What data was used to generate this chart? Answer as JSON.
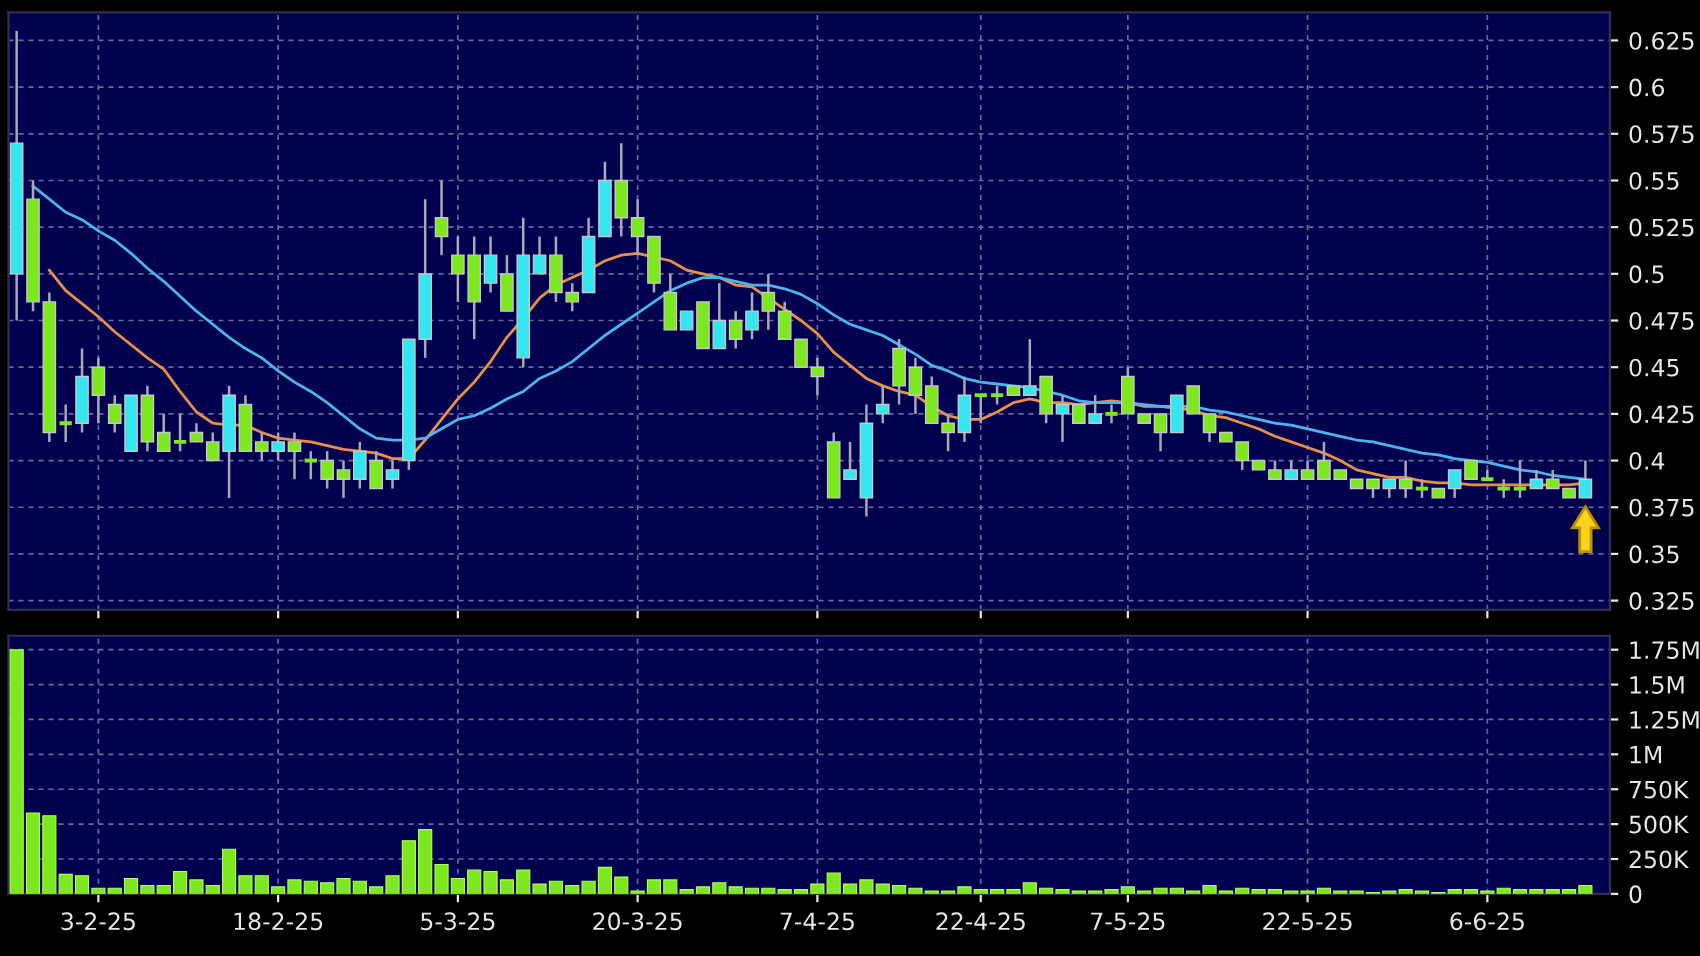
{
  "chart_data": [
    {
      "type": "candlestick",
      "tick_labels": "y",
      "grid": true,
      "categories": [
        null,
        null,
        null,
        null,
        null,
        null,
        null,
        null,
        null,
        null,
        null,
        null,
        null,
        null,
        null,
        null,
        null,
        null,
        null,
        null,
        null,
        null,
        null,
        null,
        null,
        null,
        null,
        null,
        null,
        null,
        null,
        null,
        null,
        null,
        null,
        null,
        null,
        null,
        null,
        null,
        null,
        null,
        null,
        null,
        null,
        null,
        null,
        null,
        null,
        null,
        null,
        null,
        null,
        null,
        null,
        null,
        null,
        null,
        null,
        null,
        null,
        null,
        null,
        null,
        null,
        null,
        null,
        null,
        null,
        null,
        null,
        null,
        null,
        null,
        null,
        null,
        null,
        null,
        null,
        null,
        null,
        null,
        null,
        null,
        null,
        null,
        null,
        null,
        null,
        null,
        null,
        null,
        null,
        null,
        null,
        null,
        null
      ],
      "ohlc": [
        [
          0.5,
          0.63,
          0.475,
          0.57
        ],
        [
          0.54,
          0.55,
          0.48,
          0.485
        ],
        [
          0.485,
          0.49,
          0.41,
          0.415
        ],
        [
          0.42,
          0.43,
          0.41,
          0.42
        ],
        [
          0.42,
          0.46,
          0.415,
          0.445
        ],
        [
          0.45,
          0.455,
          0.42,
          0.435
        ],
        [
          0.43,
          0.435,
          0.415,
          0.42
        ],
        [
          0.405,
          0.435,
          0.405,
          0.435
        ],
        [
          0.435,
          0.44,
          0.405,
          0.41
        ],
        [
          0.415,
          0.425,
          0.405,
          0.405
        ],
        [
          0.41,
          0.425,
          0.405,
          0.41
        ],
        [
          0.415,
          0.42,
          0.41,
          0.41
        ],
        [
          0.41,
          0.415,
          0.4,
          0.4
        ],
        [
          0.405,
          0.44,
          0.38,
          0.435
        ],
        [
          0.43,
          0.435,
          0.405,
          0.405
        ],
        [
          0.41,
          0.415,
          0.4,
          0.405
        ],
        [
          0.405,
          0.415,
          0.4,
          0.41
        ],
        [
          0.41,
          0.415,
          0.39,
          0.405
        ],
        [
          0.4,
          0.405,
          0.39,
          0.4
        ],
        [
          0.4,
          0.405,
          0.385,
          0.39
        ],
        [
          0.395,
          0.4,
          0.38,
          0.39
        ],
        [
          0.39,
          0.41,
          0.385,
          0.405
        ],
        [
          0.4,
          0.405,
          0.385,
          0.385
        ],
        [
          0.39,
          0.4,
          0.385,
          0.395
        ],
        [
          0.4,
          0.465,
          0.395,
          0.465
        ],
        [
          0.465,
          0.54,
          0.455,
          0.5
        ],
        [
          0.53,
          0.55,
          0.51,
          0.52
        ],
        [
          0.51,
          0.52,
          0.485,
          0.5
        ],
        [
          0.51,
          0.52,
          0.465,
          0.485
        ],
        [
          0.495,
          0.52,
          0.49,
          0.51
        ],
        [
          0.5,
          0.51,
          0.48,
          0.48
        ],
        [
          0.455,
          0.53,
          0.45,
          0.51
        ],
        [
          0.5,
          0.52,
          0.5,
          0.51
        ],
        [
          0.51,
          0.52,
          0.485,
          0.49
        ],
        [
          0.49,
          0.495,
          0.48,
          0.485
        ],
        [
          0.49,
          0.53,
          0.49,
          0.52
        ],
        [
          0.52,
          0.56,
          0.52,
          0.55
        ],
        [
          0.55,
          0.57,
          0.52,
          0.53
        ],
        [
          0.53,
          0.54,
          0.51,
          0.52
        ],
        [
          0.52,
          0.52,
          0.49,
          0.495
        ],
        [
          0.49,
          0.5,
          0.47,
          0.47
        ],
        [
          0.47,
          0.48,
          0.47,
          0.48
        ],
        [
          0.485,
          0.485,
          0.46,
          0.46
        ],
        [
          0.46,
          0.495,
          0.46,
          0.475
        ],
        [
          0.475,
          0.48,
          0.46,
          0.465
        ],
        [
          0.47,
          0.49,
          0.465,
          0.48
        ],
        [
          0.49,
          0.5,
          0.47,
          0.48
        ],
        [
          0.48,
          0.485,
          0.465,
          0.465
        ],
        [
          0.465,
          0.465,
          0.45,
          0.45
        ],
        [
          0.45,
          0.455,
          0.435,
          0.445
        ],
        [
          0.41,
          0.415,
          0.38,
          0.38
        ],
        [
          0.39,
          0.41,
          0.39,
          0.395
        ],
        [
          0.38,
          0.43,
          0.37,
          0.42
        ],
        [
          0.425,
          0.44,
          0.42,
          0.43
        ],
        [
          0.46,
          0.465,
          0.43,
          0.44
        ],
        [
          0.45,
          0.455,
          0.425,
          0.435
        ],
        [
          0.44,
          0.445,
          0.42,
          0.42
        ],
        [
          0.42,
          0.425,
          0.405,
          0.415
        ],
        [
          0.415,
          0.445,
          0.41,
          0.435
        ],
        [
          0.435,
          0.435,
          0.42,
          0.435
        ],
        [
          0.435,
          0.44,
          0.43,
          0.435
        ],
        [
          0.44,
          0.44,
          0.435,
          0.435
        ],
        [
          0.435,
          0.465,
          0.435,
          0.44
        ],
        [
          0.445,
          0.445,
          0.42,
          0.425
        ],
        [
          0.425,
          0.435,
          0.41,
          0.43
        ],
        [
          0.43,
          0.43,
          0.42,
          0.42
        ],
        [
          0.42,
          0.435,
          0.42,
          0.425
        ],
        [
          0.425,
          0.43,
          0.42,
          0.425
        ],
        [
          0.445,
          0.45,
          0.425,
          0.425
        ],
        [
          0.425,
          0.425,
          0.42,
          0.42
        ],
        [
          0.425,
          0.425,
          0.405,
          0.415
        ],
        [
          0.415,
          0.435,
          0.415,
          0.435
        ],
        [
          0.44,
          0.44,
          0.425,
          0.425
        ],
        [
          0.425,
          0.425,
          0.41,
          0.415
        ],
        [
          0.415,
          0.415,
          0.41,
          0.41
        ],
        [
          0.41,
          0.41,
          0.395,
          0.4
        ],
        [
          0.4,
          0.4,
          0.395,
          0.395
        ],
        [
          0.395,
          0.4,
          0.39,
          0.39
        ],
        [
          0.39,
          0.4,
          0.39,
          0.395
        ],
        [
          0.395,
          0.4,
          0.39,
          0.39
        ],
        [
          0.4,
          0.41,
          0.39,
          0.39
        ],
        [
          0.395,
          0.395,
          0.39,
          0.39
        ],
        [
          0.39,
          0.39,
          0.385,
          0.385
        ],
        [
          0.39,
          0.39,
          0.38,
          0.385
        ],
        [
          0.385,
          0.39,
          0.38,
          0.39
        ],
        [
          0.39,
          0.4,
          0.38,
          0.385
        ],
        [
          0.385,
          0.39,
          0.38,
          0.385
        ],
        [
          0.385,
          0.385,
          0.38,
          0.38
        ],
        [
          0.385,
          0.395,
          0.38,
          0.395
        ],
        [
          0.4,
          0.4,
          0.39,
          0.39
        ],
        [
          0.39,
          0.395,
          0.39,
          0.39
        ],
        [
          0.385,
          0.39,
          0.38,
          0.385
        ],
        [
          0.385,
          0.4,
          0.38,
          0.385
        ],
        [
          0.385,
          0.395,
          0.385,
          0.39
        ],
        [
          0.39,
          0.395,
          0.385,
          0.385
        ],
        [
          0.385,
          0.385,
          0.38,
          0.38
        ],
        [
          0.38,
          0.4,
          0.38,
          0.39
        ]
      ],
      "colors": [
        "#33e6f0",
        "#7de81e",
        "#7de81e",
        "#7de81e",
        "#33e6f0",
        "#7de81e",
        "#7de81e",
        "#33e6f0",
        "#7de81e",
        "#7de81e",
        "#7de81e",
        "#7de81e",
        "#7de81e",
        "#33e6f0",
        "#7de81e",
        "#7de81e",
        "#33e6f0",
        "#7de81e",
        "#7de81e",
        "#7de81e",
        "#7de81e",
        "#33e6f0",
        "#7de81e",
        "#33e6f0",
        "#33e6f0",
        "#33e6f0",
        "#7de81e",
        "#7de81e",
        "#7de81e",
        "#33e6f0",
        "#7de81e",
        "#33e6f0",
        "#33e6f0",
        "#7de81e",
        "#7de81e",
        "#33e6f0",
        "#33e6f0",
        "#7de81e",
        "#7de81e",
        "#7de81e",
        "#7de81e",
        "#33e6f0",
        "#7de81e",
        "#33e6f0",
        "#7de81e",
        "#33e6f0",
        "#7de81e",
        "#7de81e",
        "#7de81e",
        "#7de81e",
        "#7de81e",
        "#33e6f0",
        "#33e6f0",
        "#33e6f0",
        "#7de81e",
        "#7de81e",
        "#7de81e",
        "#7de81e",
        "#33e6f0",
        "#7de81e",
        "#7de81e",
        "#7de81e",
        "#33e6f0",
        "#7de81e",
        "#33e6f0",
        "#7de81e",
        "#33e6f0",
        "#7de81e",
        "#7de81e",
        "#7de81e",
        "#7de81e",
        "#33e6f0",
        "#7de81e",
        "#7de81e",
        "#7de81e",
        "#7de81e",
        "#7de81e",
        "#7de81e",
        "#33e6f0",
        "#7de81e",
        "#7de81e",
        "#7de81e",
        "#7de81e",
        "#7de81e",
        "#33e6f0",
        "#7de81e",
        "#7de81e",
        "#7de81e",
        "#33e6f0",
        "#7de81e",
        "#7de81e",
        "#7de81e",
        "#7de81e",
        "#33e6f0",
        "#7de81e",
        "#7de81e",
        "#33e6f0"
      ],
      "series": [
        {
          "type": "line",
          "color": "#e8904a",
          "values": [
            null,
            null,
            0.502,
            0.491,
            0.484,
            0.477,
            0.469,
            0.462,
            0.455,
            0.449,
            0.437,
            0.426,
            0.42,
            0.419,
            0.419,
            0.415,
            0.412,
            0.411,
            0.41,
            0.408,
            0.406,
            0.405,
            0.404,
            0.401,
            0.401,
            0.411,
            0.422,
            0.433,
            0.442,
            0.453,
            0.466,
            0.476,
            0.487,
            0.494,
            0.498,
            0.502,
            0.507,
            0.51,
            0.511,
            0.509,
            0.507,
            0.502,
            0.5,
            0.498,
            0.494,
            0.493,
            0.487,
            0.481,
            0.475,
            0.468,
            0.458,
            0.451,
            0.444,
            0.44,
            0.437,
            0.435,
            0.429,
            0.424,
            0.422,
            0.422,
            0.426,
            0.431,
            0.433,
            0.431,
            0.431,
            0.43,
            0.431,
            0.432,
            0.431,
            0.429,
            0.429,
            0.428,
            0.427,
            0.424,
            0.423,
            0.42,
            0.417,
            0.413,
            0.41,
            0.407,
            0.404,
            0.4,
            0.395,
            0.393,
            0.391,
            0.391,
            0.389,
            0.388,
            0.388,
            0.387,
            0.387,
            0.387,
            0.387,
            0.387,
            0.387,
            0.387,
            0.388
          ]
        },
        {
          "type": "line",
          "color": "#4cb4ec",
          "values": [
            null,
            0.547,
            0.54,
            0.533,
            0.529,
            0.523,
            0.518,
            0.511,
            0.503,
            0.496,
            0.488,
            0.48,
            0.473,
            0.466,
            0.46,
            0.455,
            0.448,
            0.442,
            0.437,
            0.431,
            0.424,
            0.417,
            0.412,
            0.411,
            0.411,
            0.412,
            0.417,
            0.422,
            0.424,
            0.428,
            0.433,
            0.437,
            0.444,
            0.448,
            0.453,
            0.46,
            0.467,
            0.473,
            0.479,
            0.485,
            0.491,
            0.495,
            0.498,
            0.498,
            0.496,
            0.494,
            0.494,
            0.492,
            0.489,
            0.484,
            0.478,
            0.473,
            0.47,
            0.467,
            0.462,
            0.457,
            0.451,
            0.448,
            0.444,
            0.442,
            0.441,
            0.44,
            0.439,
            0.437,
            0.435,
            0.432,
            0.431,
            0.431,
            0.431,
            0.43,
            0.429,
            0.429,
            0.429,
            0.427,
            0.426,
            0.424,
            0.422,
            0.42,
            0.419,
            0.417,
            0.415,
            0.413,
            0.411,
            0.41,
            0.408,
            0.406,
            0.404,
            0.403,
            0.401,
            0.4,
            0.399,
            0.397,
            0.395,
            0.394,
            0.392,
            0.391,
            0.39
          ]
        }
      ],
      "ylim": [
        0.32,
        0.64
      ],
      "yticks": [
        0.325,
        0.35,
        0.375,
        0.4,
        0.425,
        0.45,
        0.475,
        0.5,
        0.525,
        0.55,
        0.575,
        0.6,
        0.625
      ]
    },
    {
      "type": "bar",
      "grid": true,
      "color": "#7de81e",
      "categories": [
        null,
        null,
        null,
        null,
        null,
        "3-2-25",
        null,
        null,
        null,
        null,
        null,
        null,
        null,
        null,
        null,
        null,
        "18-2-25",
        null,
        null,
        null,
        null,
        null,
        null,
        null,
        null,
        null,
        null,
        "5-3-25",
        null,
        null,
        null,
        null,
        null,
        null,
        null,
        null,
        null,
        null,
        "20-3-25",
        null,
        null,
        null,
        null,
        null,
        null,
        null,
        null,
        null,
        null,
        "7-4-25",
        null,
        null,
        null,
        null,
        null,
        null,
        null,
        null,
        null,
        "22-4-25",
        null,
        null,
        null,
        null,
        null,
        null,
        null,
        null,
        "7-5-25",
        null,
        null,
        null,
        null,
        null,
        null,
        null,
        null,
        null,
        null,
        "22-5-25",
        null,
        null,
        null,
        null,
        null,
        null,
        null,
        null,
        null,
        null,
        "6-6-25",
        null,
        null,
        null,
        null,
        null,
        null
      ],
      "values": [
        1750000,
        580000,
        560000,
        140000,
        130000,
        40000,
        40000,
        110000,
        60000,
        60000,
        160000,
        100000,
        60000,
        320000,
        130000,
        130000,
        50000,
        100000,
        90000,
        80000,
        110000,
        90000,
        50000,
        130000,
        380000,
        460000,
        210000,
        110000,
        170000,
        160000,
        100000,
        170000,
        70000,
        90000,
        60000,
        90000,
        190000,
        120000,
        20000,
        100000,
        100000,
        30000,
        50000,
        80000,
        50000,
        40000,
        40000,
        30000,
        30000,
        70000,
        150000,
        70000,
        100000,
        70000,
        60000,
        40000,
        20000,
        20000,
        50000,
        30000,
        30000,
        30000,
        80000,
        40000,
        30000,
        20000,
        20000,
        30000,
        50000,
        20000,
        40000,
        40000,
        20000,
        60000,
        20000,
        40000,
        30000,
        30000,
        20000,
        20000,
        40000,
        20000,
        20000,
        10000,
        20000,
        30000,
        20000,
        10000,
        30000,
        30000,
        20000,
        40000,
        30000,
        30000,
        30000,
        30000,
        60000
      ],
      "ylim": [
        0,
        1850000
      ],
      "yticks": [
        0,
        {
          "value": 250000,
          "label": "250K"
        },
        {
          "value": 500000,
          "label": "500K"
        },
        {
          "value": 750000,
          "label": "750K"
        },
        {
          "value": 1000000,
          "label": "1M"
        },
        {
          "value": 1250000,
          "label": "1.25M"
        },
        {
          "value": 1500000,
          "label": "1.5M"
        },
        {
          "value": 1750000,
          "label": "1.75M"
        }
      ]
    }
  ]
}
